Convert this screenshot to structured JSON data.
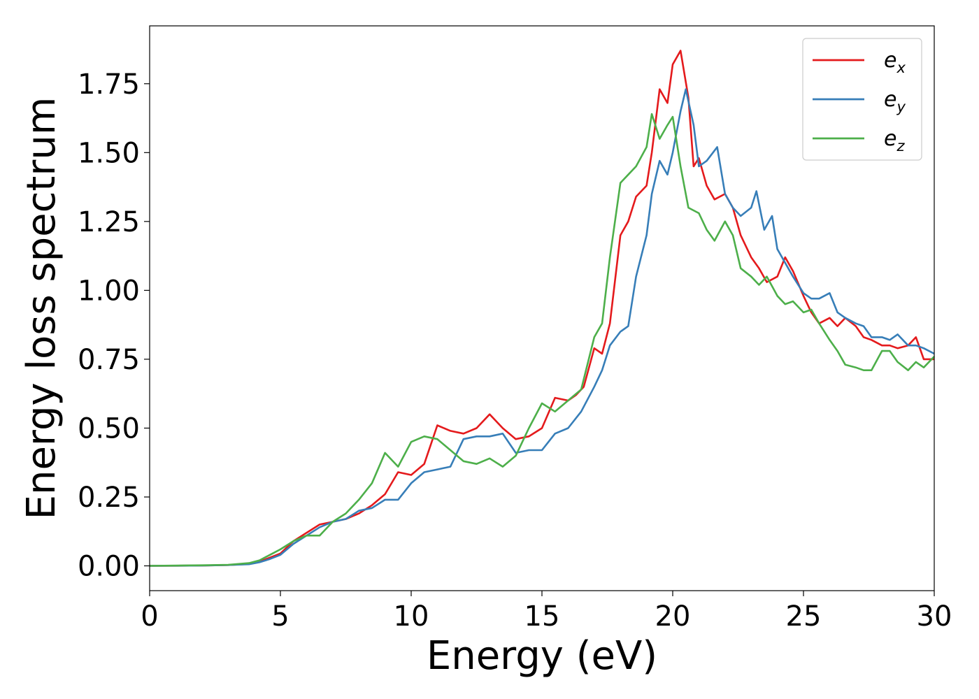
{
  "chart_data": {
    "type": "line",
    "xlabel": "Energy (eV)",
    "ylabel": "Energy loss spectrum",
    "xlim": [
      0,
      30
    ],
    "ylim": [
      -0.09,
      1.96
    ],
    "xticks": [
      0,
      5,
      10,
      15,
      20,
      25,
      30
    ],
    "xtick_labels": [
      "0",
      "5",
      "10",
      "15",
      "20",
      "25",
      "30"
    ],
    "yticks": [
      0.0,
      0.25,
      0.5,
      0.75,
      1.0,
      1.25,
      1.5,
      1.75
    ],
    "ytick_labels": [
      "0.00",
      "0.25",
      "0.50",
      "0.75",
      "1.00",
      "1.25",
      "1.50",
      "1.75"
    ],
    "grid": false,
    "legend_position": "top-right",
    "series": [
      {
        "name": "e",
        "subscript": "x",
        "color": "#e41a1c",
        "x": [
          0,
          2,
          3,
          3.8,
          4.2,
          4.6,
          5,
          5.5,
          6,
          6.5,
          7,
          7.5,
          8,
          8.5,
          9,
          9.5,
          10,
          10.5,
          11,
          11.5,
          12,
          12.5,
          13,
          13.5,
          14,
          14.5,
          15,
          15.5,
          16,
          16.3,
          16.6,
          17,
          17.3,
          17.6,
          18,
          18.3,
          18.6,
          19,
          19.2,
          19.5,
          19.8,
          20,
          20.3,
          20.6,
          20.8,
          21,
          21.3,
          21.6,
          22,
          22.3,
          22.6,
          23,
          23.3,
          23.6,
          24,
          24.3,
          24.6,
          25,
          25.3,
          25.6,
          26,
          26.3,
          26.6,
          27,
          27.3,
          27.6,
          28,
          28.3,
          28.6,
          29,
          29.3,
          29.6,
          30
        ],
        "y": [
          0,
          0.001,
          0.003,
          0.007,
          0.015,
          0.03,
          0.045,
          0.09,
          0.12,
          0.15,
          0.16,
          0.17,
          0.19,
          0.22,
          0.26,
          0.34,
          0.33,
          0.37,
          0.51,
          0.49,
          0.48,
          0.5,
          0.55,
          0.5,
          0.46,
          0.47,
          0.5,
          0.61,
          0.6,
          0.62,
          0.65,
          0.79,
          0.77,
          0.88,
          1.2,
          1.25,
          1.34,
          1.38,
          1.5,
          1.73,
          1.68,
          1.82,
          1.87,
          1.7,
          1.45,
          1.48,
          1.38,
          1.33,
          1.35,
          1.3,
          1.2,
          1.12,
          1.08,
          1.03,
          1.05,
          1.12,
          1.07,
          0.98,
          0.92,
          0.88,
          0.9,
          0.87,
          0.9,
          0.87,
          0.83,
          0.82,
          0.8,
          0.8,
          0.79,
          0.8,
          0.83,
          0.75,
          0.75
        ]
      },
      {
        "name": "e",
        "subscript": "y",
        "color": "#377eb8",
        "x": [
          0,
          2,
          3,
          3.8,
          4.2,
          4.6,
          5,
          5.5,
          6,
          6.5,
          7,
          7.5,
          8,
          8.5,
          9,
          9.5,
          10,
          10.5,
          11,
          11.5,
          12,
          12.5,
          13,
          13.5,
          14,
          14.5,
          15,
          15.5,
          16,
          16.5,
          17,
          17.3,
          17.6,
          18,
          18.3,
          18.6,
          19,
          19.2,
          19.5,
          19.8,
          20,
          20.3,
          20.5,
          20.8,
          21,
          21.3,
          21.7,
          22,
          22.3,
          22.6,
          23,
          23.2,
          23.5,
          23.8,
          24,
          24.3,
          24.6,
          25,
          25.3,
          25.6,
          26,
          26.3,
          26.6,
          27,
          27.3,
          27.6,
          28,
          28.3,
          28.6,
          29,
          29.3,
          29.6,
          30
        ],
        "y": [
          0,
          0.001,
          0.003,
          0.006,
          0.013,
          0.025,
          0.04,
          0.08,
          0.11,
          0.14,
          0.16,
          0.17,
          0.2,
          0.21,
          0.24,
          0.24,
          0.3,
          0.34,
          0.35,
          0.36,
          0.46,
          0.47,
          0.47,
          0.48,
          0.41,
          0.42,
          0.42,
          0.48,
          0.5,
          0.56,
          0.65,
          0.71,
          0.8,
          0.85,
          0.87,
          1.05,
          1.2,
          1.35,
          1.47,
          1.42,
          1.5,
          1.65,
          1.73,
          1.6,
          1.45,
          1.47,
          1.52,
          1.35,
          1.3,
          1.27,
          1.3,
          1.36,
          1.22,
          1.27,
          1.15,
          1.1,
          1.05,
          0.99,
          0.97,
          0.97,
          0.99,
          0.92,
          0.9,
          0.88,
          0.87,
          0.83,
          0.83,
          0.82,
          0.84,
          0.8,
          0.8,
          0.79,
          0.77
        ]
      },
      {
        "name": "e",
        "subscript": "z",
        "color": "#4daf4a",
        "x": [
          0,
          2,
          3,
          3.8,
          4.2,
          4.6,
          5,
          5.5,
          6,
          6.5,
          7,
          7.5,
          8,
          8.5,
          9,
          9.5,
          10,
          10.5,
          11,
          11.5,
          12,
          12.5,
          13,
          13.5,
          14,
          14.5,
          15,
          15.5,
          16,
          16.5,
          17,
          17.3,
          17.6,
          18,
          18.3,
          18.6,
          19,
          19.2,
          19.5,
          19.8,
          20,
          20.3,
          20.6,
          21,
          21.3,
          21.6,
          22,
          22.3,
          22.6,
          23,
          23.3,
          23.6,
          24,
          24.3,
          24.6,
          25,
          25.3,
          25.6,
          26,
          26.3,
          26.6,
          27,
          27.3,
          27.6,
          28,
          28.3,
          28.6,
          29,
          29.3,
          29.6,
          30
        ],
        "y": [
          0,
          0.002,
          0.004,
          0.01,
          0.02,
          0.04,
          0.06,
          0.09,
          0.11,
          0.11,
          0.16,
          0.19,
          0.24,
          0.3,
          0.41,
          0.36,
          0.45,
          0.47,
          0.46,
          0.42,
          0.38,
          0.37,
          0.39,
          0.36,
          0.4,
          0.5,
          0.59,
          0.56,
          0.6,
          0.64,
          0.83,
          0.88,
          1.12,
          1.39,
          1.42,
          1.45,
          1.52,
          1.64,
          1.55,
          1.6,
          1.63,
          1.45,
          1.3,
          1.28,
          1.22,
          1.18,
          1.25,
          1.2,
          1.08,
          1.05,
          1.02,
          1.05,
          0.98,
          0.95,
          0.96,
          0.92,
          0.93,
          0.88,
          0.82,
          0.78,
          0.73,
          0.72,
          0.71,
          0.71,
          0.78,
          0.78,
          0.74,
          0.71,
          0.74,
          0.72,
          0.76
        ]
      }
    ]
  }
}
